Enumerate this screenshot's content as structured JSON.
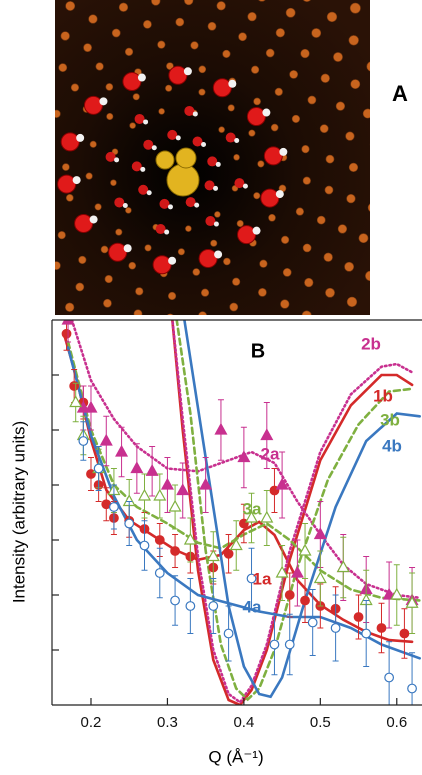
{
  "image_panel": {
    "label": "A"
  },
  "chart_data": {
    "type": "line",
    "panel_label": "B",
    "xlabel": "Q (Å⁻¹)",
    "ylabel": "Intensity (arbitrary units)",
    "xlim": [
      0.149,
      0.633
    ],
    "ylim": [
      0,
      7
    ],
    "xticks": [
      0.2,
      0.3,
      0.4,
      0.5,
      0.6
    ],
    "yticks": [
      1,
      2,
      3,
      4,
      5,
      6
    ],
    "series": [
      {
        "name": "1a",
        "color": "#d42a2a",
        "style": "solid",
        "x": [
          0.165,
          0.18,
          0.2,
          0.22,
          0.25,
          0.28,
          0.31,
          0.34,
          0.37,
          0.4,
          0.42,
          0.44,
          0.47,
          0.5,
          0.53,
          0.56,
          0.59,
          0.62
        ],
        "values": [
          6.73,
          6.0,
          4.82,
          3.91,
          3.36,
          3.09,
          2.82,
          2.64,
          2.73,
          3.18,
          3.33,
          3.09,
          2.27,
          1.82,
          1.55,
          1.33,
          1.18,
          1.15
        ]
      },
      {
        "name": "1b",
        "color": "#d42a2a",
        "style": "solid",
        "x": [
          0.305,
          0.32,
          0.34,
          0.36,
          0.38,
          0.395,
          0.41,
          0.43,
          0.46,
          0.5,
          0.54,
          0.58,
          0.6,
          0.62
        ],
        "values": [
          7.2,
          5.0,
          2.45,
          0.82,
          0.09,
          0.0,
          0.27,
          1.0,
          2.64,
          4.45,
          5.45,
          6.0,
          6.0,
          5.82
        ]
      },
      {
        "name": "2a",
        "color": "#c8308f",
        "style": "dotted",
        "x": [
          0.175,
          0.2,
          0.23,
          0.26,
          0.3,
          0.34,
          0.38,
          0.41,
          0.44,
          0.47,
          0.5,
          0.53,
          0.56,
          0.6,
          0.63
        ],
        "values": [
          7.0,
          5.9,
          5.2,
          4.7,
          4.3,
          4.25,
          4.45,
          4.6,
          4.4,
          3.7,
          3.1,
          2.55,
          2.2,
          2.0,
          1.95
        ]
      },
      {
        "name": "2b",
        "color": "#c8308f",
        "style": "dotted",
        "x": [
          0.305,
          0.32,
          0.34,
          0.36,
          0.38,
          0.395,
          0.41,
          0.43,
          0.46,
          0.5,
          0.54,
          0.58,
          0.6,
          0.62
        ],
        "values": [
          7.2,
          5.2,
          2.7,
          1.0,
          0.2,
          0.05,
          0.35,
          1.1,
          2.8,
          4.6,
          5.65,
          6.15,
          6.2,
          6.05
        ]
      },
      {
        "name": "3a",
        "color": "#7fb040",
        "style": "dashed",
        "x": [
          0.17,
          0.2,
          0.23,
          0.26,
          0.3,
          0.34,
          0.37,
          0.4,
          0.43,
          0.46,
          0.5,
          0.54,
          0.58,
          0.63
        ],
        "values": [
          6.6,
          5.0,
          4.0,
          3.6,
          3.3,
          2.95,
          2.85,
          3.1,
          3.3,
          3.0,
          2.45,
          2.1,
          1.95,
          1.9
        ]
      },
      {
        "name": "3b",
        "color": "#7fb040",
        "style": "dashed",
        "x": [
          0.31,
          0.33,
          0.35,
          0.37,
          0.39,
          0.405,
          0.42,
          0.44,
          0.47,
          0.51,
          0.55,
          0.59,
          0.62
        ],
        "values": [
          7.2,
          5.3,
          2.8,
          1.1,
          0.3,
          0.1,
          0.3,
          1.0,
          2.5,
          4.1,
          5.1,
          5.7,
          5.75
        ]
      },
      {
        "name": "4a",
        "color": "#3a78c0",
        "style": "solid",
        "x": [
          0.17,
          0.2,
          0.23,
          0.26,
          0.3,
          0.34,
          0.38,
          0.42,
          0.46,
          0.5,
          0.54,
          0.58,
          0.63
        ],
        "values": [
          6.5,
          4.9,
          3.8,
          3.0,
          2.4,
          2.0,
          1.85,
          1.7,
          1.6,
          1.6,
          1.4,
          1.1,
          0.85
        ]
      },
      {
        "name": "4b",
        "color": "#3a78c0",
        "style": "solid",
        "x": [
          0.32,
          0.34,
          0.36,
          0.38,
          0.4,
          0.42,
          0.435,
          0.45,
          0.48,
          0.52,
          0.56,
          0.6,
          0.63
        ],
        "values": [
          7.2,
          5.4,
          3.6,
          1.8,
          0.7,
          0.2,
          0.15,
          0.5,
          1.9,
          3.6,
          4.8,
          5.3,
          5.25
        ]
      }
    ],
    "points": [
      {
        "color": "#d42a2a",
        "marker": "filled-circle",
        "x": [
          0.168,
          0.178,
          0.19,
          0.2,
          0.21,
          0.22,
          0.23,
          0.25,
          0.27,
          0.29,
          0.31,
          0.33,
          0.36,
          0.38,
          0.4,
          0.44,
          0.46,
          0.48,
          0.5,
          0.52,
          0.55,
          0.58,
          0.61
        ],
        "values": [
          6.75,
          5.8,
          5.5,
          4.2,
          4.0,
          3.65,
          3.4,
          3.35,
          3.2,
          3.0,
          2.8,
          2.7,
          2.5,
          2.75,
          3.3,
          3.9,
          2.0,
          1.9,
          1.8,
          1.75,
          1.6,
          1.4,
          1.3
        ],
        "errors": [
          0.3,
          0.3,
          0.3,
          0.3,
          0.3,
          0.3,
          0.3,
          0.3,
          0.3,
          0.3,
          0.3,
          0.3,
          0.3,
          0.35,
          0.35,
          0.4,
          0.4,
          0.4,
          0.4,
          0.4,
          0.4,
          0.45,
          0.45
        ]
      },
      {
        "color": "#c8308f",
        "marker": "filled-triangle",
        "x": [
          0.17,
          0.19,
          0.2,
          0.22,
          0.24,
          0.26,
          0.28,
          0.3,
          0.32,
          0.35,
          0.37,
          0.4,
          0.43,
          0.45,
          0.47,
          0.5,
          0.53,
          0.56,
          0.59,
          0.62
        ],
        "values": [
          7.0,
          5.4,
          5.4,
          4.8,
          4.6,
          4.3,
          4.25,
          4.0,
          3.9,
          4.0,
          5.0,
          4.5,
          4.9,
          4.0,
          2.4,
          3.1,
          2.5,
          2.1,
          2.0,
          1.9
        ],
        "errors": [
          0.4,
          0.4,
          0.4,
          0.45,
          0.45,
          0.45,
          0.45,
          0.5,
          0.5,
          0.5,
          0.55,
          0.55,
          0.6,
          0.6,
          0.6,
          0.6,
          0.6,
          0.6,
          0.6,
          0.6
        ]
      },
      {
        "color": "#7fb040",
        "marker": "open-triangle",
        "x": [
          0.18,
          0.19,
          0.21,
          0.23,
          0.25,
          0.27,
          0.29,
          0.31,
          0.33,
          0.36,
          0.39,
          0.41,
          0.43,
          0.45,
          0.48,
          0.5,
          0.53,
          0.56,
          0.6,
          0.62
        ],
        "values": [
          5.5,
          4.9,
          4.3,
          3.9,
          3.7,
          3.8,
          3.8,
          3.6,
          3.0,
          2.7,
          2.9,
          3.4,
          3.4,
          2.4,
          2.8,
          2.3,
          2.5,
          1.9,
          2.0,
          1.85
        ],
        "errors": [
          0.35,
          0.35,
          0.35,
          0.4,
          0.4,
          0.4,
          0.4,
          0.4,
          0.4,
          0.45,
          0.45,
          0.45,
          0.5,
          0.5,
          0.5,
          0.5,
          0.55,
          0.55,
          0.55,
          0.55
        ]
      },
      {
        "color": "#3a78c0",
        "marker": "open-circle",
        "x": [
          0.19,
          0.21,
          0.23,
          0.25,
          0.27,
          0.29,
          0.31,
          0.33,
          0.36,
          0.38,
          0.41,
          0.44,
          0.46,
          0.49,
          0.52,
          0.56,
          0.59,
          0.62
        ],
        "values": [
          4.8,
          4.3,
          3.6,
          3.3,
          2.9,
          2.4,
          1.9,
          1.8,
          1.8,
          1.3,
          2.3,
          1.1,
          1.1,
          1.5,
          1.4,
          1.3,
          0.5,
          0.3
        ],
        "errors": [
          0.35,
          0.4,
          0.4,
          0.4,
          0.45,
          0.45,
          0.45,
          0.5,
          0.5,
          0.5,
          0.55,
          0.55,
          0.55,
          0.6,
          0.6,
          0.6,
          0.65,
          0.65
        ]
      }
    ]
  }
}
